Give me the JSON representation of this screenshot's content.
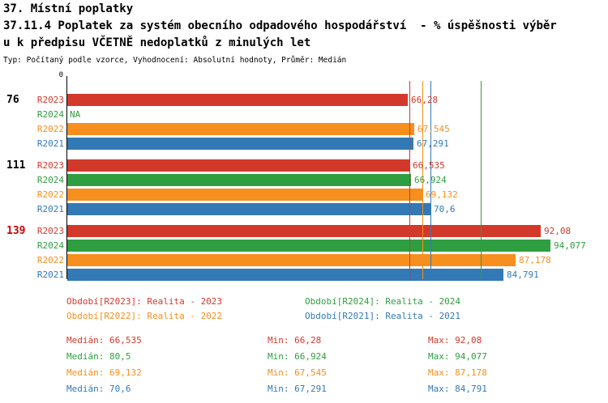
{
  "title": {
    "line1": "37. Místní poplatky",
    "line2": "37.11.4 Poplatek za systém obecního odpadového hospodářství  - % úspěšnosti výběr",
    "line3": "u k předpisu VČETNĚ nedoplatků z minulých let",
    "subtitle": "Typ: Počítaný podle vzorce, Vyhodnocení: Absolutní hodnoty, Průměr: Medián"
  },
  "colors": {
    "R2023": "#d3392b",
    "R2024": "#2f9e41",
    "R2022": "#f68f1e",
    "R2021": "#3379b5",
    "group_label_default": "#000000",
    "group_label_highlight": "#cc0000",
    "axis": "#000000"
  },
  "chart_data": {
    "type": "bar",
    "orientation": "horizontal",
    "xlim": [
      0,
      100
    ],
    "grid": false,
    "axis_zero_label": "0",
    "legend_position": "bottom",
    "groups": [
      {
        "label": "76",
        "label_color": "#000000",
        "bars": [
          {
            "series": "R2023",
            "value": 66.28,
            "display": "66,28"
          },
          {
            "series": "R2024",
            "value": null,
            "display": "NA"
          },
          {
            "series": "R2022",
            "value": 67.545,
            "display": "67,545"
          },
          {
            "series": "R2021",
            "value": 67.291,
            "display": "67,291"
          }
        ]
      },
      {
        "label": "111",
        "label_color": "#000000",
        "bars": [
          {
            "series": "R2023",
            "value": 66.535,
            "display": "66,535"
          },
          {
            "series": "R2024",
            "value": 66.924,
            "display": "66,924"
          },
          {
            "series": "R2022",
            "value": 69.132,
            "display": "69,132"
          },
          {
            "series": "R2021",
            "value": 70.6,
            "display": "70,6"
          }
        ]
      },
      {
        "label": "139",
        "label_color": "#cc0000",
        "bars": [
          {
            "series": "R2023",
            "value": 92.08,
            "display": "92,08"
          },
          {
            "series": "R2024",
            "value": 94.077,
            "display": "94,077"
          },
          {
            "series": "R2022",
            "value": 87.178,
            "display": "87,178"
          },
          {
            "series": "R2021",
            "value": 84.791,
            "display": "84,791"
          }
        ]
      }
    ],
    "median_lines": [
      {
        "series": "R2023",
        "value": 66.535
      },
      {
        "series": "R2024",
        "value": 80.5
      },
      {
        "series": "R2022",
        "value": 69.132
      },
      {
        "series": "R2021",
        "value": 70.6
      }
    ],
    "legend": [
      {
        "series": "R2023",
        "label": "Období[R2023]: Realita - 2023"
      },
      {
        "series": "R2024",
        "label": "Období[R2024]: Realita - 2024"
      },
      {
        "series": "R2022",
        "label": "Období[R2022]: Realita - 2022"
      },
      {
        "series": "R2021",
        "label": "Období[R2021]: Realita - 2021"
      }
    ],
    "stats": [
      {
        "series": "R2023",
        "median": "Medián: 66,535",
        "min": "Min: 66,28",
        "max": "Max: 92,08"
      },
      {
        "series": "R2024",
        "median": "Medián: 80,5",
        "min": "Min: 66,924",
        "max": "Max: 94,077"
      },
      {
        "series": "R2022",
        "median": "Medián: 69,132",
        "min": "Min: 67,545",
        "max": "Max: 87,178"
      },
      {
        "series": "R2021",
        "median": "Medián: 70,6",
        "min": "Min: 67,291",
        "max": "Max: 84,791"
      }
    ]
  }
}
